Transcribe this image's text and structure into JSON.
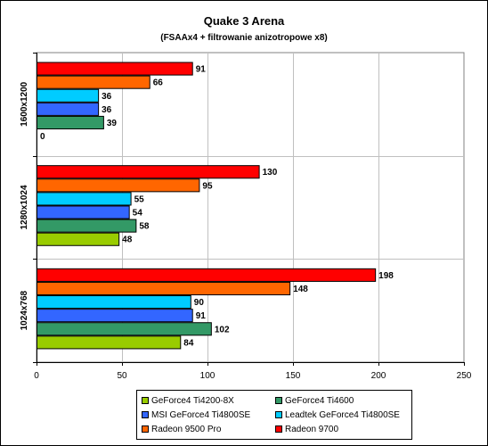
{
  "chart_data": {
    "type": "bar",
    "orientation": "horizontal",
    "title": "Quake 3 Arena",
    "subtitle": "(FSAAx4 + filtrowanie anizotropowe x8)",
    "categories": [
      "1600x1200",
      "1280x1024",
      "1024x768"
    ],
    "xlim": [
      0,
      250
    ],
    "xticks": [
      "0",
      "50",
      "100",
      "150",
      "200",
      "250"
    ],
    "grid": true,
    "legend_position": "bottom",
    "series": [
      {
        "name": "GeForce4 Ti4200-8X",
        "color": "#99cc00",
        "values": [
          0,
          48,
          84
        ],
        "labels": [
          "0",
          "48",
          "84"
        ]
      },
      {
        "name": "GeForce4 Ti4600",
        "color": "#339966",
        "values": [
          39,
          58,
          102
        ],
        "labels": [
          "39",
          "58",
          "102"
        ]
      },
      {
        "name": "MSI GeForce4 Ti4800SE",
        "color": "#3366ff",
        "values": [
          36,
          54,
          91
        ],
        "labels": [
          "36",
          "54",
          "91"
        ]
      },
      {
        "name": "Leadtek GeForce4 Ti4800SE",
        "color": "#00ccff",
        "values": [
          36,
          55,
          90
        ],
        "labels": [
          "36",
          "55",
          "90"
        ]
      },
      {
        "name": "Radeon 9500 Pro",
        "color": "#ff6600",
        "values": [
          66,
          95,
          148
        ],
        "labels": [
          "66",
          "95",
          "148"
        ]
      },
      {
        "name": "Radeon 9700",
        "color": "#ff0000",
        "values": [
          91,
          130,
          198
        ],
        "labels": [
          "91",
          "130",
          "198"
        ]
      }
    ]
  }
}
